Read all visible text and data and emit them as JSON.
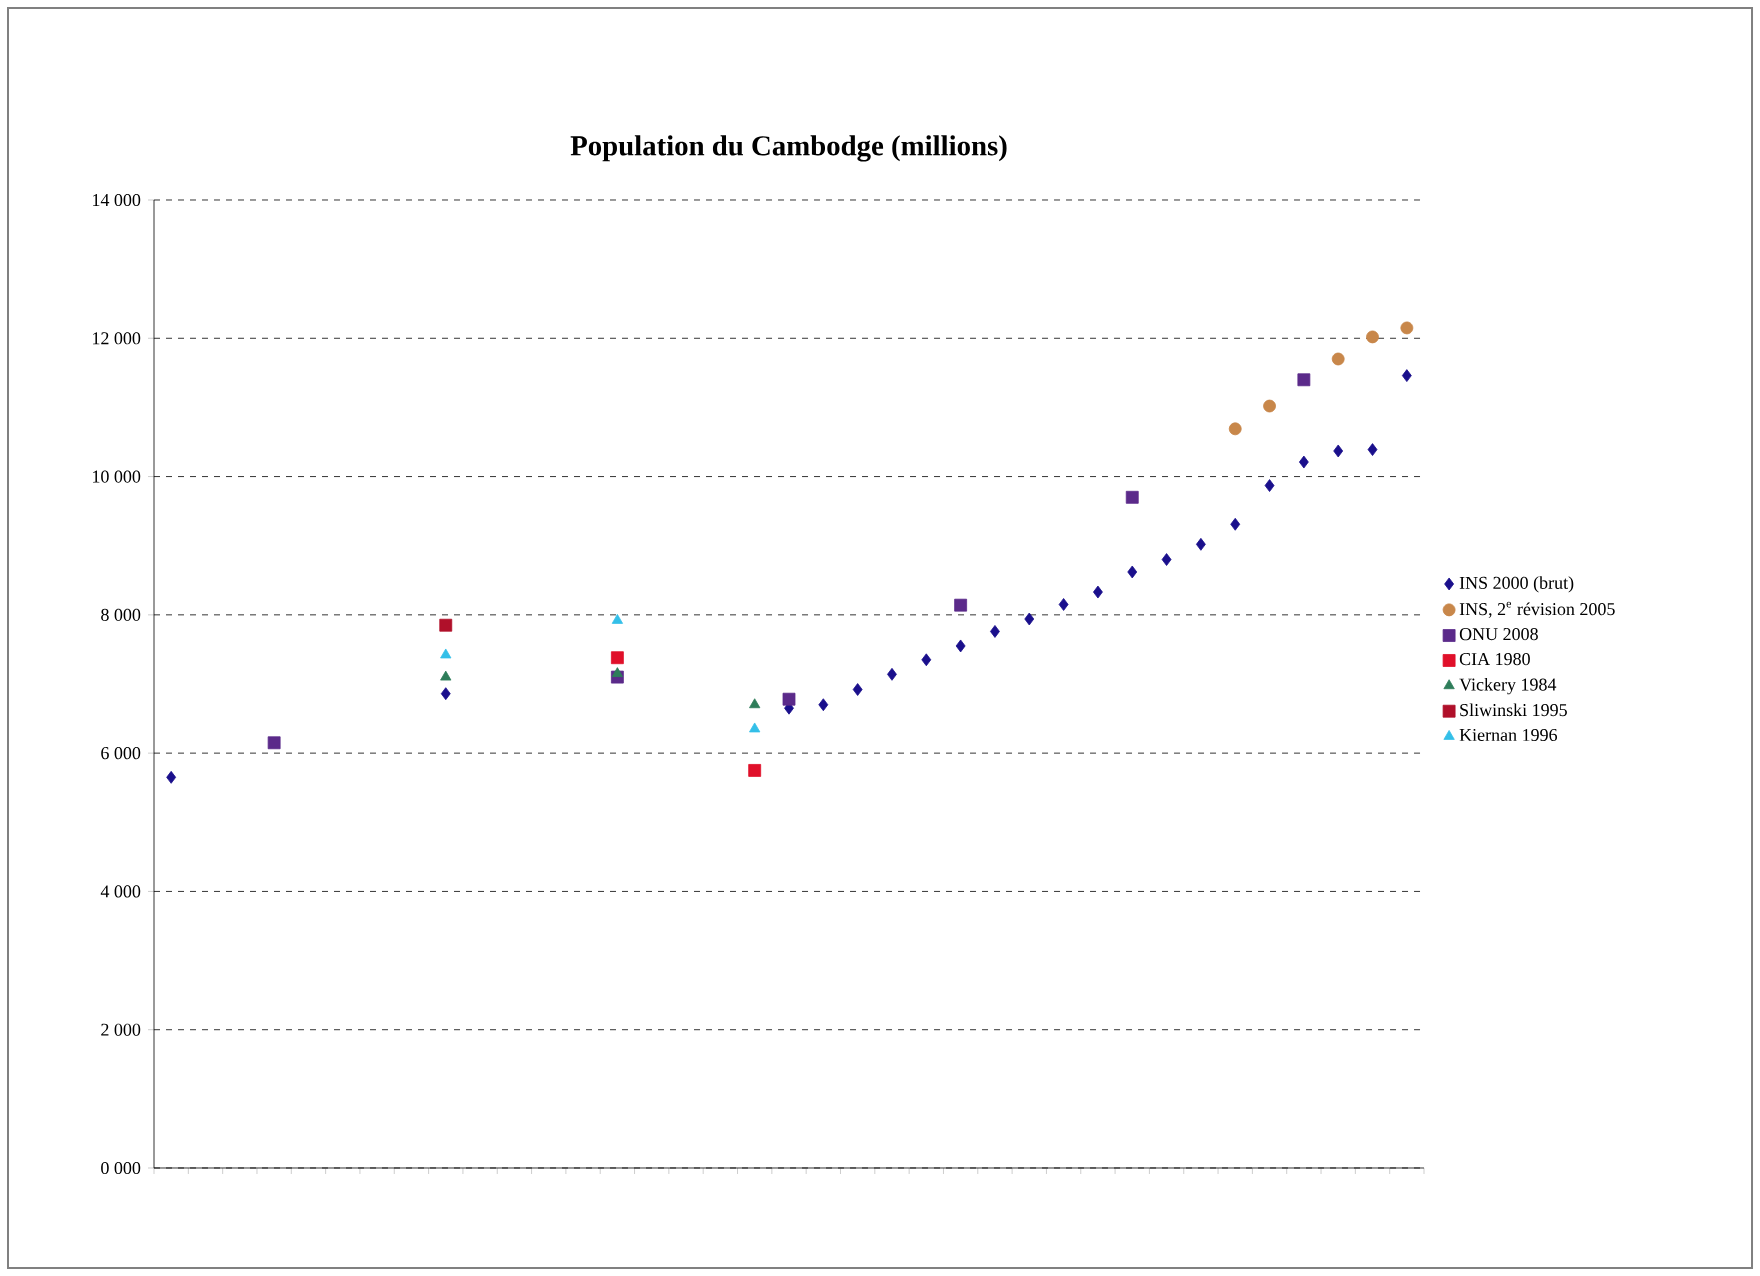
{
  "chart_data": {
    "type": "scatter",
    "title": "Population du Cambodge (millions)",
    "categories": [
      null,
      null,
      null,
      null,
      null,
      null,
      null,
      null,
      null,
      null,
      null,
      null,
      null,
      null,
      null,
      null,
      null,
      null,
      null,
      null,
      null,
      null,
      null,
      null,
      null,
      null,
      null,
      null,
      null,
      null,
      null,
      null,
      null,
      null,
      null,
      null,
      null
    ],
    "series": [
      {
        "name": "INS 2000 (brut)",
        "color": "#1a0f8c",
        "marker": "diamond",
        "values": [
          5650,
          null,
          null,
          null,
          null,
          null,
          null,
          null,
          6860,
          null,
          null,
          null,
          null,
          null,
          null,
          null,
          null,
          null,
          6650,
          6700,
          6920,
          7140,
          7350,
          7550,
          7760,
          7940,
          8150,
          8330,
          8620,
          8800,
          9020,
          9310,
          9870,
          10210,
          10370,
          10390,
          11460
        ]
      },
      {
        "name": "INS, 2$^{e}$ révision 2005",
        "color": "#c8874a",
        "marker": "circle",
        "values": [
          null,
          null,
          null,
          null,
          null,
          null,
          null,
          null,
          null,
          null,
          null,
          null,
          null,
          null,
          null,
          null,
          null,
          null,
          null,
          null,
          null,
          null,
          null,
          null,
          null,
          null,
          null,
          null,
          null,
          null,
          null,
          10690,
          11020,
          null,
          11700,
          12020,
          12150
        ]
      },
      {
        "name": "ONU 2008",
        "color": "#5b2a8a",
        "marker": "square",
        "values": [
          null,
          null,
          null,
          6150,
          null,
          null,
          null,
          null,
          null,
          null,
          null,
          null,
          null,
          7100,
          null,
          null,
          null,
          null,
          6780,
          null,
          null,
          null,
          null,
          8140,
          null,
          null,
          null,
          null,
          9700,
          null,
          null,
          null,
          null,
          11400,
          null,
          null,
          null
        ]
      },
      {
        "name": "CIA 1980",
        "color": "#e0102a",
        "marker": "square",
        "values": [
          null,
          null,
          null,
          null,
          null,
          null,
          null,
          null,
          null,
          null,
          null,
          null,
          null,
          7380,
          null,
          null,
          null,
          5750,
          null,
          null,
          null,
          null,
          null,
          null,
          null,
          null,
          null,
          null,
          null,
          null,
          null,
          null,
          null,
          null,
          null,
          null,
          null
        ]
      },
      {
        "name": "Vickery 1984",
        "color": "#2e7d5a",
        "marker": "triangle",
        "values": [
          null,
          null,
          null,
          null,
          null,
          null,
          null,
          null,
          7100,
          null,
          null,
          null,
          null,
          7150,
          null,
          null,
          null,
          6700,
          null,
          null,
          null,
          null,
          null,
          null,
          null,
          null,
          null,
          null,
          null,
          null,
          null,
          null,
          null,
          null,
          null,
          null,
          null
        ]
      },
      {
        "name": "Sliwinski 1995",
        "color": "#b0102a",
        "marker": "square",
        "values": [
          null,
          null,
          null,
          null,
          null,
          null,
          null,
          null,
          7850,
          null,
          null,
          null,
          null,
          null,
          null,
          null,
          null,
          null,
          null,
          null,
          null,
          null,
          null,
          null,
          null,
          null,
          null,
          null,
          null,
          null,
          null,
          null,
          null,
          null,
          null,
          null,
          null
        ]
      },
      {
        "name": "Kiernan 1996",
        "color": "#33bfe8",
        "marker": "triangle",
        "values": [
          null,
          null,
          null,
          null,
          null,
          null,
          null,
          null,
          7420,
          null,
          null,
          null,
          null,
          7920,
          null,
          null,
          null,
          6350,
          null,
          null,
          null,
          null,
          null,
          null,
          null,
          null,
          null,
          null,
          null,
          null,
          null,
          null,
          null,
          null,
          null,
          null,
          null
        ]
      }
    ],
    "ylim": [
      0,
      14000
    ],
    "yticks": [
      {
        "value": 0,
        "label": "0 000"
      },
      {
        "value": 2000,
        "label": "2 000"
      },
      {
        "value": 4000,
        "label": "4 000"
      },
      {
        "value": 6000,
        "label": "6 000"
      },
      {
        "value": 8000,
        "label": "8 000"
      },
      {
        "value": 10000,
        "label": "10 000"
      },
      {
        "value": 12000,
        "label": "12 000"
      },
      {
        "value": 14000,
        "label": "14 000"
      }
    ],
    "grid": "y",
    "legend": "right",
    "tick_labels": "y"
  }
}
